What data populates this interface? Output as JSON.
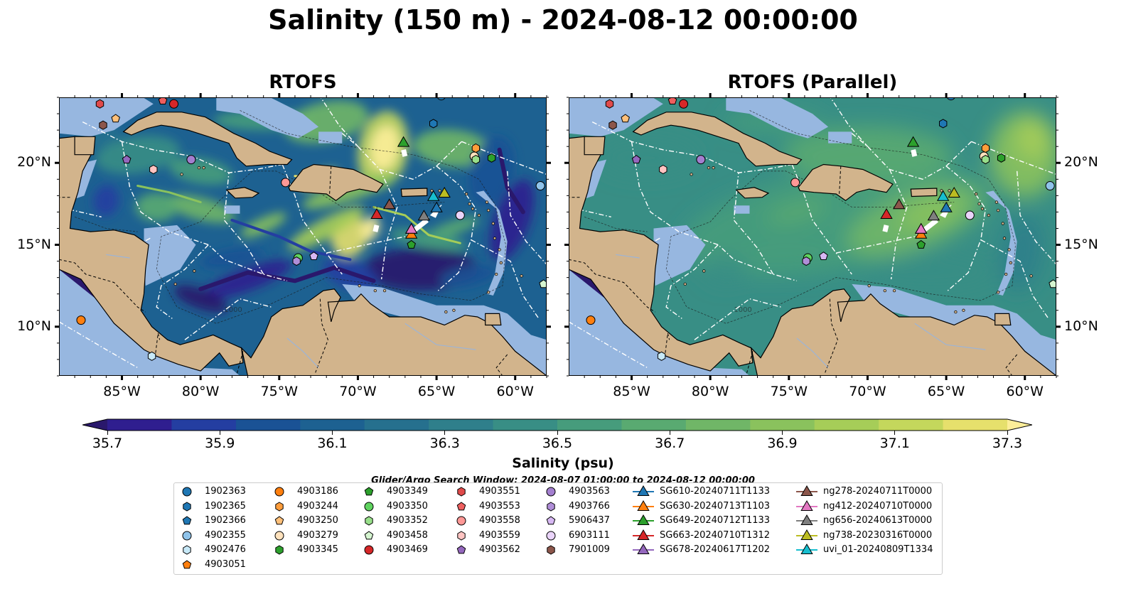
{
  "title": "Salinity (150 m) - 2024-08-12 00:00:00",
  "panels": [
    {
      "title": "RTOFS",
      "field": "high-variance"
    },
    {
      "title": "RTOFS (Parallel)",
      "field": "smooth"
    }
  ],
  "map": {
    "lon_range": [
      -89,
      -58
    ],
    "lat_range": [
      7,
      24
    ],
    "lon_ticks": [
      "85°W",
      "80°W",
      "75°W",
      "70°W",
      "65°W",
      "60°W"
    ],
    "lat_ticks": [
      "20°N",
      "15°N",
      "10°N"
    ],
    "land_color": "#d2b48c",
    "shelf_color": "#97b7e0",
    "isobath_label": "1000"
  },
  "colorbar": {
    "ticks": [
      "35.7",
      "35.9",
      "36.1",
      "36.3",
      "36.5",
      "36.7",
      "36.9",
      "37.1",
      "37.3"
    ],
    "label": "Salinity (psu)",
    "range": [
      35.6,
      37.4
    ],
    "colormap": "haline",
    "colors": [
      "#2a186c",
      "#2f1e8f",
      "#243ea1",
      "#1a5295",
      "#1d6191",
      "#26708e",
      "#2f7f8b",
      "#388e85",
      "#469c7c",
      "#59aa71",
      "#70b667",
      "#8ac25d",
      "#a6cd58",
      "#c4d75c",
      "#e6e06c",
      "#fdee99"
    ]
  },
  "search_window": "Glider/Argo Search Window: 2024-08-07 01:00:00 to 2024-08-12 00:00:00",
  "legend": {
    "columns": [
      [
        {
          "label": "1902363",
          "marker": "circle",
          "color": "#1f77b4"
        },
        {
          "label": "1902365",
          "marker": "hexagon",
          "color": "#1f77b4"
        },
        {
          "label": "1902366",
          "marker": "pentagon",
          "color": "#1f77b4"
        },
        {
          "label": "4902355",
          "marker": "circle",
          "color": "#8fc3ea"
        },
        {
          "label": "4902476",
          "marker": "hexagon",
          "color": "#c7e9f8"
        },
        {
          "label": "4903051",
          "marker": "pentagon",
          "color": "#ff7f0e"
        }
      ],
      [
        {
          "label": "4903186",
          "marker": "circle",
          "color": "#ff7f0e"
        },
        {
          "label": "4903244",
          "marker": "hexagon",
          "color": "#ff9d3b"
        },
        {
          "label": "4903250",
          "marker": "pentagon",
          "color": "#ffc07a"
        },
        {
          "label": "4903279",
          "marker": "circle",
          "color": "#ffe2bd"
        },
        {
          "label": "4903345",
          "marker": "hexagon",
          "color": "#2ca02c"
        }
      ],
      [
        {
          "label": "4903349",
          "marker": "pentagon",
          "color": "#2ca02c"
        },
        {
          "label": "4903350",
          "marker": "circle",
          "color": "#5fd35f"
        },
        {
          "label": "4903352",
          "marker": "hexagon",
          "color": "#98df8a"
        },
        {
          "label": "4903458",
          "marker": "pentagon",
          "color": "#d5f5d0"
        },
        {
          "label": "4903469",
          "marker": "circle",
          "color": "#d62728"
        }
      ],
      [
        {
          "label": "4903551",
          "marker": "hexagon",
          "color": "#e04a4a"
        },
        {
          "label": "4903553",
          "marker": "pentagon",
          "color": "#ee5f5f"
        },
        {
          "label": "4903558",
          "marker": "circle",
          "color": "#ff9896"
        },
        {
          "label": "4903559",
          "marker": "hexagon",
          "color": "#ffc4c2"
        },
        {
          "label": "4903562",
          "marker": "pentagon",
          "color": "#9467bd"
        }
      ],
      [
        {
          "label": "4903563",
          "marker": "circle",
          "color": "#a37fcf"
        },
        {
          "label": "4903766",
          "marker": "hexagon",
          "color": "#b08ed8"
        },
        {
          "label": "5906437",
          "marker": "pentagon",
          "color": "#d7b8f3"
        },
        {
          "label": "6903111",
          "marker": "circle",
          "color": "#ead4fa"
        },
        {
          "label": "7901009",
          "marker": "hexagon",
          "color": "#8c564b"
        }
      ],
      [
        {
          "label": "SG610-20240711T1133",
          "marker": "triangle",
          "color": "#1f77b4"
        },
        {
          "label": "SG630-20240713T1103",
          "marker": "triangle",
          "color": "#ff7f0e"
        },
        {
          "label": "SG649-20240712T1133",
          "marker": "triangle",
          "color": "#2ca02c"
        },
        {
          "label": "SG663-20240710T1312",
          "marker": "triangle",
          "color": "#d62728"
        },
        {
          "label": "SG678-20240617T1202",
          "marker": "triangle",
          "color": "#9467bd"
        }
      ],
      [
        {
          "label": "ng278-20240711T0000",
          "marker": "triangle",
          "color": "#8c564b"
        },
        {
          "label": "ng412-20240710T0000",
          "marker": "triangle",
          "color": "#e377c2"
        },
        {
          "label": "ng656-20240613T0000",
          "marker": "triangle",
          "color": "#7f7f7f"
        },
        {
          "label": "ng738-20230316T0000",
          "marker": "triangle",
          "color": "#bcbd22"
        },
        {
          "label": "uvi_01-20240809T1334",
          "marker": "triangle",
          "color": "#17becf"
        }
      ]
    ]
  },
  "chart_data": {
    "type": "heatmap",
    "title": "Salinity (150 m) - 2024-08-12 00:00:00",
    "subplots": [
      "RTOFS",
      "RTOFS (Parallel)"
    ],
    "xlabel": "",
    "ylabel": "",
    "xlim": [
      -89,
      -58
    ],
    "ylim": [
      7,
      24
    ],
    "colorbar_label": "Salinity (psu)",
    "colorbar_range": [
      35.6,
      37.4
    ],
    "markers": [
      {
        "id": "1902363",
        "lon": -64.7,
        "lat": 24.1
      },
      {
        "id": "1902365",
        "lon": -65.2,
        "lat": 22.4
      },
      {
        "id": "4902355",
        "lon": -58.4,
        "lat": 18.6
      },
      {
        "id": "4902476",
        "lon": -83.1,
        "lat": 8.2
      },
      {
        "id": "4903051",
        "lon": -87.6,
        "lat": 10.4
      },
      {
        "id": "4903186",
        "lon": -87.6,
        "lat": 10.4
      },
      {
        "id": "4903244",
        "lon": -62.5,
        "lat": 20.9
      },
      {
        "id": "4903250",
        "lon": -85.4,
        "lat": 22.7
      },
      {
        "id": "4903279",
        "lon": -62.6,
        "lat": 20.4
      },
      {
        "id": "4903345",
        "lon": -61.5,
        "lat": 20.3
      },
      {
        "id": "4903349",
        "lon": -66.6,
        "lat": 15.0
      },
      {
        "id": "4903350",
        "lon": -73.8,
        "lat": 14.2
      },
      {
        "id": "4903352",
        "lon": -62.5,
        "lat": 20.2
      },
      {
        "id": "4903458",
        "lon": -58.2,
        "lat": 12.6
      },
      {
        "id": "4903469",
        "lon": -81.7,
        "lat": 23.6
      },
      {
        "id": "4903551",
        "lon": -86.4,
        "lat": 23.6
      },
      {
        "id": "4903553",
        "lon": -82.4,
        "lat": 23.8
      },
      {
        "id": "4903558",
        "lon": -74.6,
        "lat": 18.8
      },
      {
        "id": "4903559",
        "lon": -83.0,
        "lat": 19.6
      },
      {
        "id": "4903562",
        "lon": -84.7,
        "lat": 20.2
      },
      {
        "id": "4903563",
        "lon": -80.6,
        "lat": 20.2
      },
      {
        "id": "4903766",
        "lon": -73.9,
        "lat": 14.0
      },
      {
        "id": "5906437",
        "lon": -72.8,
        "lat": 14.3
      },
      {
        "id": "6903111",
        "lon": -63.5,
        "lat": 16.8
      },
      {
        "id": "7901009",
        "lon": -86.2,
        "lat": 22.3
      },
      {
        "id": "SG610-20240711T1133",
        "lon": -65.0,
        "lat": 17.2
      },
      {
        "id": "SG630-20240713T1103",
        "lon": -66.6,
        "lat": 15.6
      },
      {
        "id": "SG649-20240712T1133",
        "lon": -67.1,
        "lat": 21.2
      },
      {
        "id": "SG663-20240710T1312",
        "lon": -68.8,
        "lat": 16.8
      },
      {
        "id": "SG678-20240617T1202",
        "lon": -66.6,
        "lat": 15.9
      },
      {
        "id": "ng278-20240711T0000",
        "lon": -68.0,
        "lat": 17.4
      },
      {
        "id": "ng412-20240710T0000",
        "lon": -66.6,
        "lat": 15.9
      },
      {
        "id": "ng656-20240613T0000",
        "lon": -65.8,
        "lat": 16.7
      },
      {
        "id": "ng738-20230316T0000",
        "lon": -64.5,
        "lat": 18.1
      },
      {
        "id": "uvi_01-20240809T1334",
        "lon": -65.2,
        "lat": 17.9
      }
    ]
  }
}
